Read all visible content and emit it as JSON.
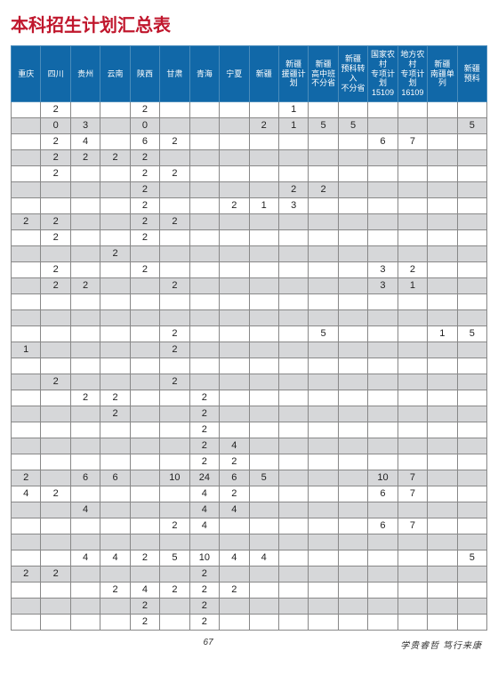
{
  "title": "本科招生计划汇总表",
  "columns": [
    "重庆",
    "四川",
    "贵州",
    "云南",
    "陕西",
    "甘肃",
    "青海",
    "宁夏",
    "新疆",
    "新疆\n援疆计划",
    "新疆\n高中班\n不分省",
    "新疆\n预科转入\n不分省",
    "国家农村\n专项计划\n15109",
    "地方农村\n专项计划\n16109",
    "新疆\n南疆单列",
    "新疆\n预科"
  ],
  "rows": [
    [
      "",
      "2",
      "",
      "",
      "2",
      "",
      "",
      "",
      "",
      "1",
      "",
      "",
      "",
      "",
      "",
      ""
    ],
    [
      "",
      "0",
      "3",
      "",
      "0",
      "",
      "",
      "",
      "2",
      "1",
      "5",
      "5",
      "",
      "",
      "",
      "5"
    ],
    [
      "",
      "2",
      "4",
      "",
      "6",
      "2",
      "",
      "",
      "",
      "",
      "",
      "",
      "6",
      "7",
      "",
      ""
    ],
    [
      "",
      "2",
      "2",
      "2",
      "2",
      "",
      "",
      "",
      "",
      "",
      "",
      "",
      "",
      "",
      "",
      ""
    ],
    [
      "",
      "2",
      "",
      "",
      "2",
      "2",
      "",
      "",
      "",
      "",
      "",
      "",
      "",
      "",
      "",
      ""
    ],
    [
      "",
      "",
      "",
      "",
      "2",
      "",
      "",
      "",
      "",
      "2",
      "2",
      "",
      "",
      "",
      "",
      ""
    ],
    [
      "",
      "",
      "",
      "",
      "2",
      "",
      "",
      "2",
      "1",
      "3",
      "",
      "",
      "",
      "",
      "",
      ""
    ],
    [
      "2",
      "2",
      "",
      "",
      "2",
      "2",
      "",
      "",
      "",
      "",
      "",
      "",
      "",
      "",
      "",
      ""
    ],
    [
      "",
      "2",
      "",
      "",
      "2",
      "",
      "",
      "",
      "",
      "",
      "",
      "",
      "",
      "",
      "",
      ""
    ],
    [
      "",
      "",
      "",
      "2",
      "",
      "",
      "",
      "",
      "",
      "",
      "",
      "",
      "",
      "",
      "",
      ""
    ],
    [
      "",
      "2",
      "",
      "",
      "2",
      "",
      "",
      "",
      "",
      "",
      "",
      "",
      "3",
      "2",
      "",
      ""
    ],
    [
      "",
      "2",
      "2",
      "",
      "",
      "2",
      "",
      "",
      "",
      "",
      "",
      "",
      "3",
      "1",
      "",
      ""
    ],
    [
      "",
      "",
      "",
      "",
      "",
      "",
      "",
      "",
      "",
      "",
      "",
      "",
      "",
      "",
      "",
      ""
    ],
    [
      "",
      "",
      "",
      "",
      "",
      "",
      "",
      "",
      "",
      "",
      "",
      "",
      "",
      "",
      "",
      ""
    ],
    [
      "",
      "",
      "",
      "",
      "",
      "2",
      "",
      "",
      "",
      "",
      "5",
      "",
      "",
      "",
      "1",
      "5"
    ],
    [
      "1",
      "",
      "",
      "",
      "",
      "2",
      "",
      "",
      "",
      "",
      "",
      "",
      "",
      "",
      "",
      ""
    ],
    [
      "",
      "",
      "",
      "",
      "",
      "",
      "",
      "",
      "",
      "",
      "",
      "",
      "",
      "",
      "",
      ""
    ],
    [
      "",
      "2",
      "",
      "",
      "",
      "2",
      "",
      "",
      "",
      "",
      "",
      "",
      "",
      "",
      "",
      ""
    ],
    [
      "",
      "",
      "2",
      "2",
      "",
      "",
      "2",
      "",
      "",
      "",
      "",
      "",
      "",
      "",
      "",
      ""
    ],
    [
      "",
      "",
      "",
      "2",
      "",
      "",
      "2",
      "",
      "",
      "",
      "",
      "",
      "",
      "",
      "",
      ""
    ],
    [
      "",
      "",
      "",
      "",
      "",
      "",
      "2",
      "",
      "",
      "",
      "",
      "",
      "",
      "",
      "",
      ""
    ],
    [
      "",
      "",
      "",
      "",
      "",
      "",
      "2",
      "4",
      "",
      "",
      "",
      "",
      "",
      "",
      "",
      ""
    ],
    [
      "",
      "",
      "",
      "",
      "",
      "",
      "2",
      "2",
      "",
      "",
      "",
      "",
      "",
      "",
      "",
      ""
    ],
    [
      "2",
      "",
      "6",
      "6",
      "",
      "10",
      "24",
      "6",
      "5",
      "",
      "",
      "",
      "10",
      "7",
      "",
      ""
    ],
    [
      "4",
      "2",
      "",
      "",
      "",
      "",
      "4",
      "2",
      "",
      "",
      "",
      "",
      "6",
      "7",
      "",
      ""
    ],
    [
      "",
      "",
      "4",
      "",
      "",
      "",
      "4",
      "4",
      "",
      "",
      "",
      "",
      "",
      "",
      "",
      ""
    ],
    [
      "",
      "",
      "",
      "",
      "",
      "2",
      "4",
      "",
      "",
      "",
      "",
      "",
      "6",
      "7",
      "",
      ""
    ],
    [
      "",
      "",
      "",
      "",
      "",
      "",
      "",
      "",
      "",
      "",
      "",
      "",
      "",
      "",
      "",
      ""
    ],
    [
      "",
      "",
      "4",
      "4",
      "2",
      "5",
      "10",
      "4",
      "4",
      "",
      "",
      "",
      "",
      "",
      "",
      "5"
    ],
    [
      "2",
      "2",
      "",
      "",
      "",
      "",
      "2",
      "",
      "",
      "",
      "",
      "",
      "",
      "",
      "",
      ""
    ],
    [
      "",
      "",
      "",
      "2",
      "4",
      "2",
      "2",
      "2",
      "",
      "",
      "",
      "",
      "",
      "",
      "",
      ""
    ],
    [
      "",
      "",
      "",
      "",
      "2",
      "",
      "2",
      "",
      "",
      "",
      "",
      "",
      "",
      "",
      "",
      ""
    ],
    [
      "",
      "",
      "",
      "",
      "2",
      "",
      "2",
      "",
      "",
      "",
      "",
      "",
      "",
      "",
      "",
      ""
    ]
  ],
  "footer_center": "67",
  "footer_right": "学贵睿哲  笃行来康"
}
